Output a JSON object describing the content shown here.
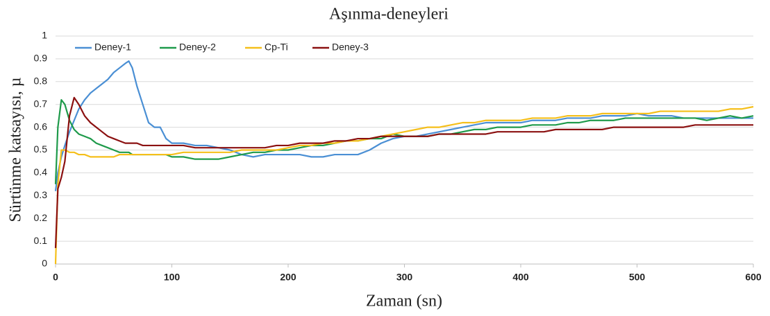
{
  "chart_data": {
    "type": "line",
    "title": "Aşınma-deneyleri",
    "xlabel": "Zaman (sn)",
    "ylabel": "Sürtünme katsayısı, µ",
    "x": [
      0,
      2,
      5,
      8,
      12,
      16,
      20,
      25,
      30,
      35,
      40,
      45,
      50,
      55,
      60,
      63,
      66,
      70,
      75,
      80,
      85,
      90,
      95,
      100,
      110,
      120,
      130,
      140,
      150,
      160,
      170,
      180,
      190,
      200,
      210,
      220,
      230,
      240,
      250,
      260,
      270,
      280,
      290,
      300,
      310,
      320,
      330,
      340,
      350,
      360,
      370,
      380,
      390,
      400,
      410,
      420,
      430,
      440,
      450,
      460,
      470,
      480,
      490,
      500,
      510,
      520,
      530,
      540,
      550,
      560,
      570,
      580,
      590,
      600
    ],
    "series": [
      {
        "name": "Deney-1",
        "color": "#4a8fd4",
        "values": [
          0.32,
          0.4,
          0.47,
          0.52,
          0.58,
          0.63,
          0.68,
          0.72,
          0.75,
          0.77,
          0.79,
          0.81,
          0.84,
          0.86,
          0.88,
          0.89,
          0.86,
          0.78,
          0.7,
          0.62,
          0.6,
          0.6,
          0.55,
          0.53,
          0.53,
          0.52,
          0.52,
          0.51,
          0.5,
          0.48,
          0.47,
          0.48,
          0.48,
          0.48,
          0.48,
          0.47,
          0.47,
          0.48,
          0.48,
          0.48,
          0.5,
          0.53,
          0.55,
          0.56,
          0.56,
          0.57,
          0.58,
          0.59,
          0.6,
          0.61,
          0.62,
          0.62,
          0.62,
          0.62,
          0.63,
          0.63,
          0.63,
          0.64,
          0.64,
          0.64,
          0.65,
          0.65,
          0.65,
          0.66,
          0.65,
          0.65,
          0.65,
          0.64,
          0.64,
          0.64,
          0.64,
          0.64,
          0.64,
          0.64
        ]
      },
      {
        "name": "Deney-2",
        "color": "#1e9a4a",
        "values": [
          0.35,
          0.6,
          0.72,
          0.7,
          0.63,
          0.59,
          0.57,
          0.56,
          0.55,
          0.53,
          0.52,
          0.51,
          0.5,
          0.49,
          0.49,
          0.49,
          0.48,
          0.48,
          0.48,
          0.48,
          0.48,
          0.48,
          0.48,
          0.47,
          0.47,
          0.46,
          0.46,
          0.46,
          0.47,
          0.48,
          0.49,
          0.49,
          0.5,
          0.5,
          0.51,
          0.52,
          0.52,
          0.53,
          0.54,
          0.54,
          0.55,
          0.55,
          0.57,
          0.56,
          0.56,
          0.56,
          0.57,
          0.57,
          0.58,
          0.59,
          0.59,
          0.6,
          0.6,
          0.6,
          0.61,
          0.61,
          0.61,
          0.62,
          0.62,
          0.63,
          0.63,
          0.63,
          0.64,
          0.64,
          0.64,
          0.64,
          0.64,
          0.64,
          0.64,
          0.63,
          0.64,
          0.65,
          0.64,
          0.65
        ]
      },
      {
        "name": "Cp-Ti",
        "color": "#f5bf1a",
        "values": [
          0.0,
          0.35,
          0.5,
          0.5,
          0.49,
          0.49,
          0.48,
          0.48,
          0.47,
          0.47,
          0.47,
          0.47,
          0.47,
          0.48,
          0.48,
          0.48,
          0.48,
          0.48,
          0.48,
          0.48,
          0.48,
          0.48,
          0.48,
          0.48,
          0.49,
          0.49,
          0.49,
          0.49,
          0.49,
          0.5,
          0.5,
          0.5,
          0.5,
          0.51,
          0.52,
          0.52,
          0.53,
          0.53,
          0.54,
          0.54,
          0.55,
          0.56,
          0.57,
          0.58,
          0.59,
          0.6,
          0.6,
          0.61,
          0.62,
          0.62,
          0.63,
          0.63,
          0.63,
          0.63,
          0.64,
          0.64,
          0.64,
          0.65,
          0.65,
          0.65,
          0.66,
          0.66,
          0.66,
          0.66,
          0.66,
          0.67,
          0.67,
          0.67,
          0.67,
          0.67,
          0.67,
          0.68,
          0.68,
          0.69
        ]
      },
      {
        "name": "Deney-3",
        "color": "#8b1010",
        "values": [
          0.07,
          0.33,
          0.38,
          0.45,
          0.65,
          0.73,
          0.7,
          0.65,
          0.62,
          0.6,
          0.58,
          0.56,
          0.55,
          0.54,
          0.53,
          0.53,
          0.53,
          0.53,
          0.52,
          0.52,
          0.52,
          0.52,
          0.52,
          0.52,
          0.52,
          0.51,
          0.51,
          0.51,
          0.51,
          0.51,
          0.51,
          0.51,
          0.52,
          0.52,
          0.53,
          0.53,
          0.53,
          0.54,
          0.54,
          0.55,
          0.55,
          0.56,
          0.56,
          0.56,
          0.56,
          0.56,
          0.57,
          0.57,
          0.57,
          0.57,
          0.57,
          0.58,
          0.58,
          0.58,
          0.58,
          0.58,
          0.59,
          0.59,
          0.59,
          0.59,
          0.59,
          0.6,
          0.6,
          0.6,
          0.6,
          0.6,
          0.6,
          0.6,
          0.61,
          0.61,
          0.61,
          0.61,
          0.61,
          0.61
        ]
      }
    ],
    "xlim": [
      0,
      600
    ],
    "xticks": [
      0,
      100,
      200,
      300,
      400,
      500,
      600
    ],
    "ylim": [
      0,
      1
    ],
    "yticks": [
      0,
      0.1,
      0.2,
      0.3,
      0.4,
      0.5,
      0.6,
      0.7,
      0.8,
      0.9,
      1
    ],
    "grid": true,
    "legend": "top-left"
  }
}
